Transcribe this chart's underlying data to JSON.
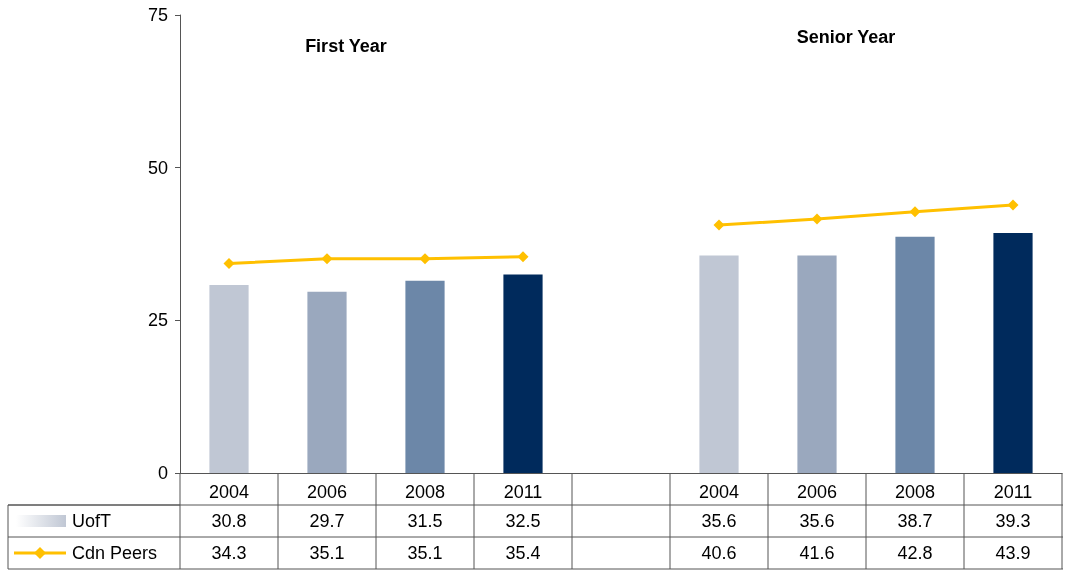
{
  "chart_data": {
    "type": "bar",
    "categories": [
      "2004",
      "2006",
      "2008",
      "2011",
      null,
      "2004",
      "2006",
      "2008",
      "2011"
    ],
    "series": [
      {
        "name": "UofT",
        "colors": [
          "#c0c7d4",
          "#9aa8be",
          "#6c87a8",
          "#002a5c",
          null,
          "#c0c7d4",
          "#9aa8be",
          "#6c87a8",
          "#002a5c"
        ],
        "values": [
          30.8,
          29.7,
          31.5,
          32.5,
          null,
          35.6,
          35.6,
          38.7,
          39.3
        ]
      },
      {
        "name": "Cdn Peers",
        "type": "line",
        "color": "#ffc000",
        "marker": "diamond",
        "values": [
          34.3,
          35.1,
          35.1,
          35.4,
          null,
          40.6,
          41.6,
          42.8,
          43.9
        ]
      }
    ],
    "annotations": [
      "First Year",
      "Senior Year"
    ],
    "ylim": [
      0,
      75
    ],
    "yticks": [
      0,
      25,
      50,
      75
    ],
    "grid": false,
    "legend": "bottom",
    "data_labels": true
  }
}
